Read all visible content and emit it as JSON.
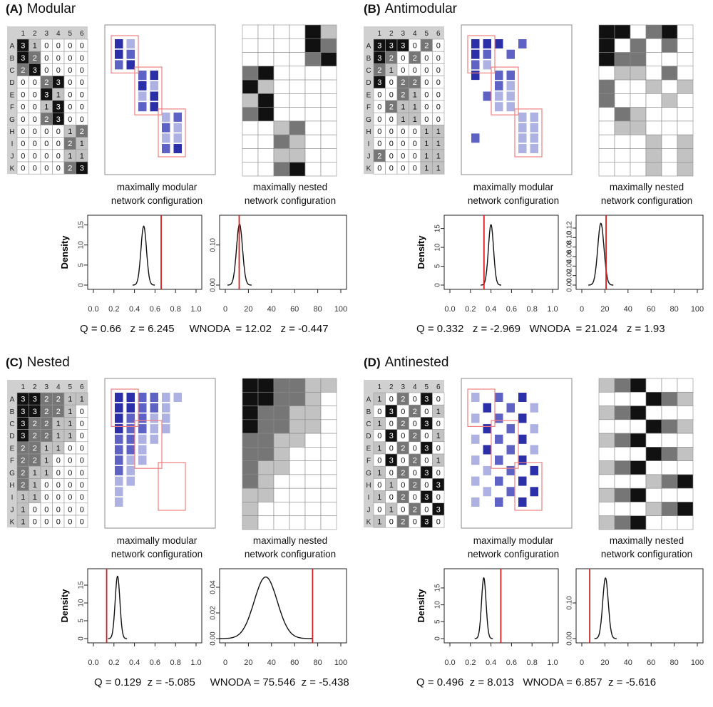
{
  "row_labels": [
    "A",
    "B",
    "C",
    "D",
    "E",
    "F",
    "G",
    "H",
    "I",
    "J",
    "K"
  ],
  "col_labels": [
    "1",
    "2",
    "3",
    "4",
    "5",
    "6"
  ],
  "caption_modular": [
    "maximally modular",
    "network configuration"
  ],
  "caption_nested": [
    "maximally nested",
    "network configuration"
  ],
  "density_label": "Density",
  "colors": {
    "null_curve": "#111111",
    "observed_line": "#d42020",
    "module_box": "#f08080",
    "blue_dark": "#2b2fa8",
    "blue_mid": "#5d62c4",
    "blue_light": "#aeb2e2"
  },
  "panels": [
    {
      "letter": "(A)",
      "title": "Modular",
      "matrix": [
        [
          3,
          1,
          0,
          0,
          0,
          0
        ],
        [
          3,
          2,
          0,
          0,
          0,
          0
        ],
        [
          2,
          3,
          0,
          0,
          0,
          0
        ],
        [
          0,
          0,
          2,
          3,
          0,
          0
        ],
        [
          0,
          0,
          3,
          1,
          0,
          0
        ],
        [
          0,
          0,
          1,
          3,
          0,
          0
        ],
        [
          0,
          0,
          2,
          3,
          0,
          0
        ],
        [
          0,
          0,
          0,
          0,
          1,
          2
        ],
        [
          0,
          0,
          0,
          0,
          2,
          1
        ],
        [
          0,
          0,
          0,
          0,
          1,
          1
        ],
        [
          0,
          0,
          0,
          0,
          2,
          3
        ]
      ],
      "stats": {
        "q_text": "Q = 0.66",
        "q_z_text": "z = 6.245",
        "w_text": "WNODA  = 12.02",
        "w_z_text": "z = -0.447"
      },
      "chart_data": [
        {
          "type": "line",
          "xlabel": "",
          "ylabel": "Density",
          "xlim": [
            0,
            1.0
          ],
          "xticks": [
            "0.0",
            "0.2",
            "0.4",
            "0.6",
            "0.8",
            "1.0"
          ],
          "yticks": [
            "0",
            "5",
            "10",
            "15"
          ],
          "ylim": [
            0,
            16
          ],
          "null_mean": 0.49,
          "null_sd": 0.027,
          "null_peak": 14.7,
          "observed": 0.66
        },
        {
          "type": "line",
          "xlabel": "",
          "ylabel": "",
          "xlim": [
            0,
            100
          ],
          "xticks": [
            "0",
            "20",
            "40",
            "60",
            "80",
            "100"
          ],
          "yticks": [
            "0.00",
            "0.10"
          ],
          "ylim": [
            0,
            0.16
          ],
          "null_mean": 12.3,
          "null_sd": 2.6,
          "null_peak": 0.152,
          "observed": 12.02
        }
      ]
    },
    {
      "letter": "(B)",
      "title": "Antimodular",
      "matrix": [
        [
          3,
          3,
          3,
          0,
          2,
          0
        ],
        [
          3,
          2,
          0,
          2,
          0,
          0
        ],
        [
          2,
          1,
          0,
          0,
          0,
          0
        ],
        [
          3,
          0,
          2,
          2,
          0,
          0
        ],
        [
          0,
          0,
          2,
          1,
          0,
          0
        ],
        [
          0,
          2,
          1,
          1,
          0,
          0
        ],
        [
          0,
          0,
          1,
          1,
          0,
          0
        ],
        [
          0,
          0,
          0,
          0,
          1,
          1
        ],
        [
          0,
          0,
          0,
          0,
          1,
          1
        ],
        [
          2,
          0,
          0,
          0,
          1,
          1
        ],
        [
          0,
          0,
          0,
          0,
          1,
          1
        ]
      ],
      "stats": {
        "q_text": "Q = 0.332",
        "q_z_text": "z = -2.969",
        "w_text": "WNODA  = 21.024",
        "w_z_text": "z = 1.93"
      },
      "chart_data": [
        {
          "type": "line",
          "xlabel": "",
          "ylabel": "Density",
          "xlim": [
            0,
            1.0
          ],
          "xticks": [
            "0.0",
            "0.2",
            "0.4",
            "0.6",
            "0.8",
            "1.0"
          ],
          "yticks": [
            "0",
            "5",
            "10",
            "15"
          ],
          "ylim": [
            0,
            17
          ],
          "null_mean": 0.4,
          "null_sd": 0.025,
          "null_peak": 16,
          "observed": 0.332
        },
        {
          "type": "line",
          "xlabel": "",
          "ylabel": "",
          "xlim": [
            0,
            100
          ],
          "xticks": [
            "0",
            "20",
            "40",
            "60",
            "80",
            "100"
          ],
          "yticks": [
            "0.00",
            "0.02",
            "0.04",
            "0.06",
            "0.08",
            "0.10",
            "0.12"
          ],
          "ylim": [
            0,
            0.135
          ],
          "null_mean": 16.5,
          "null_sd": 2.7,
          "null_peak": 0.13,
          "observed": 21.024
        }
      ]
    },
    {
      "letter": "(C)",
      "title": "Nested",
      "matrix": [
        [
          3,
          3,
          2,
          2,
          1,
          1
        ],
        [
          3,
          3,
          2,
          2,
          1,
          0
        ],
        [
          3,
          2,
          2,
          1,
          1,
          0
        ],
        [
          3,
          2,
          2,
          1,
          1,
          0
        ],
        [
          2,
          2,
          1,
          1,
          0,
          0
        ],
        [
          2,
          2,
          1,
          0,
          0,
          0
        ],
        [
          2,
          1,
          1,
          0,
          0,
          0
        ],
        [
          2,
          1,
          0,
          0,
          0,
          0
        ],
        [
          1,
          1,
          0,
          0,
          0,
          0
        ],
        [
          1,
          0,
          0,
          0,
          0,
          0
        ],
        [
          1,
          0,
          0,
          0,
          0,
          0
        ]
      ],
      "stats": {
        "q_text": "Q = 0.129",
        "q_z_text": "z = -5.085",
        "w_text": "WNODA = 75.546",
        "w_z_text": "z = -5.438"
      },
      "chart_data": [
        {
          "type": "line",
          "xlabel": "",
          "ylabel": "Density",
          "xlim": [
            0,
            1.0
          ],
          "xticks": [
            "0.0",
            "0.2",
            "0.4",
            "0.6",
            "0.8",
            "1.0"
          ],
          "yticks": [
            "0",
            "5",
            "10",
            "15"
          ],
          "ylim": [
            0,
            18
          ],
          "null_mean": 0.235,
          "null_sd": 0.023,
          "null_peak": 17.5,
          "observed": 0.129
        },
        {
          "type": "line",
          "xlabel": "",
          "ylabel": "",
          "xlim": [
            0,
            100
          ],
          "xticks": [
            "0",
            "20",
            "40",
            "60",
            "80",
            "100"
          ],
          "yticks": [
            "0.00",
            "0.02",
            "0.04"
          ],
          "ylim": [
            0,
            0.05
          ],
          "null_mean": 35,
          "null_sd": 10,
          "null_peak": 0.048,
          "observed": 75.546
        }
      ]
    },
    {
      "letter": "(D)",
      "title": "Antinested",
      "matrix": [
        [
          1,
          0,
          2,
          0,
          3,
          0
        ],
        [
          0,
          3,
          0,
          2,
          0,
          1
        ],
        [
          1,
          0,
          2,
          0,
          3,
          0
        ],
        [
          0,
          3,
          0,
          2,
          0,
          1
        ],
        [
          1,
          0,
          2,
          0,
          3,
          0
        ],
        [
          0,
          3,
          0,
          2,
          0,
          1
        ],
        [
          1,
          0,
          2,
          0,
          3,
          0
        ],
        [
          0,
          1,
          0,
          2,
          0,
          3
        ],
        [
          1,
          0,
          2,
          0,
          3,
          0
        ],
        [
          0,
          1,
          0,
          2,
          0,
          3
        ],
        [
          1,
          0,
          2,
          0,
          3,
          0
        ]
      ],
      "stats": {
        "q_text": "Q = 0.496",
        "q_z_text": "z = 8.013",
        "w_text": "WNODA = 6.857",
        "w_z_text": "z = -5.616"
      },
      "chart_data": [
        {
          "type": "line",
          "xlabel": "",
          "ylabel": "Density",
          "xlim": [
            0,
            1.0
          ],
          "xticks": [
            "0.0",
            "0.2",
            "0.4",
            "0.6",
            "0.8",
            "1.0"
          ],
          "yticks": [
            "0",
            "5",
            "10",
            "15"
          ],
          "ylim": [
            0,
            19
          ],
          "null_mean": 0.33,
          "null_sd": 0.022,
          "null_peak": 18,
          "observed": 0.496
        },
        {
          "type": "line",
          "xlabel": "",
          "ylabel": "",
          "xlim": [
            0,
            100
          ],
          "xticks": [
            "0",
            "20",
            "40",
            "60",
            "80",
            "100"
          ],
          "yticks": [
            "0.00",
            "0.10"
          ],
          "ylim": [
            0,
            0.18
          ],
          "null_mean": 20.5,
          "null_sd": 2.4,
          "null_peak": 0.17,
          "observed": 6.857
        }
      ]
    }
  ]
}
